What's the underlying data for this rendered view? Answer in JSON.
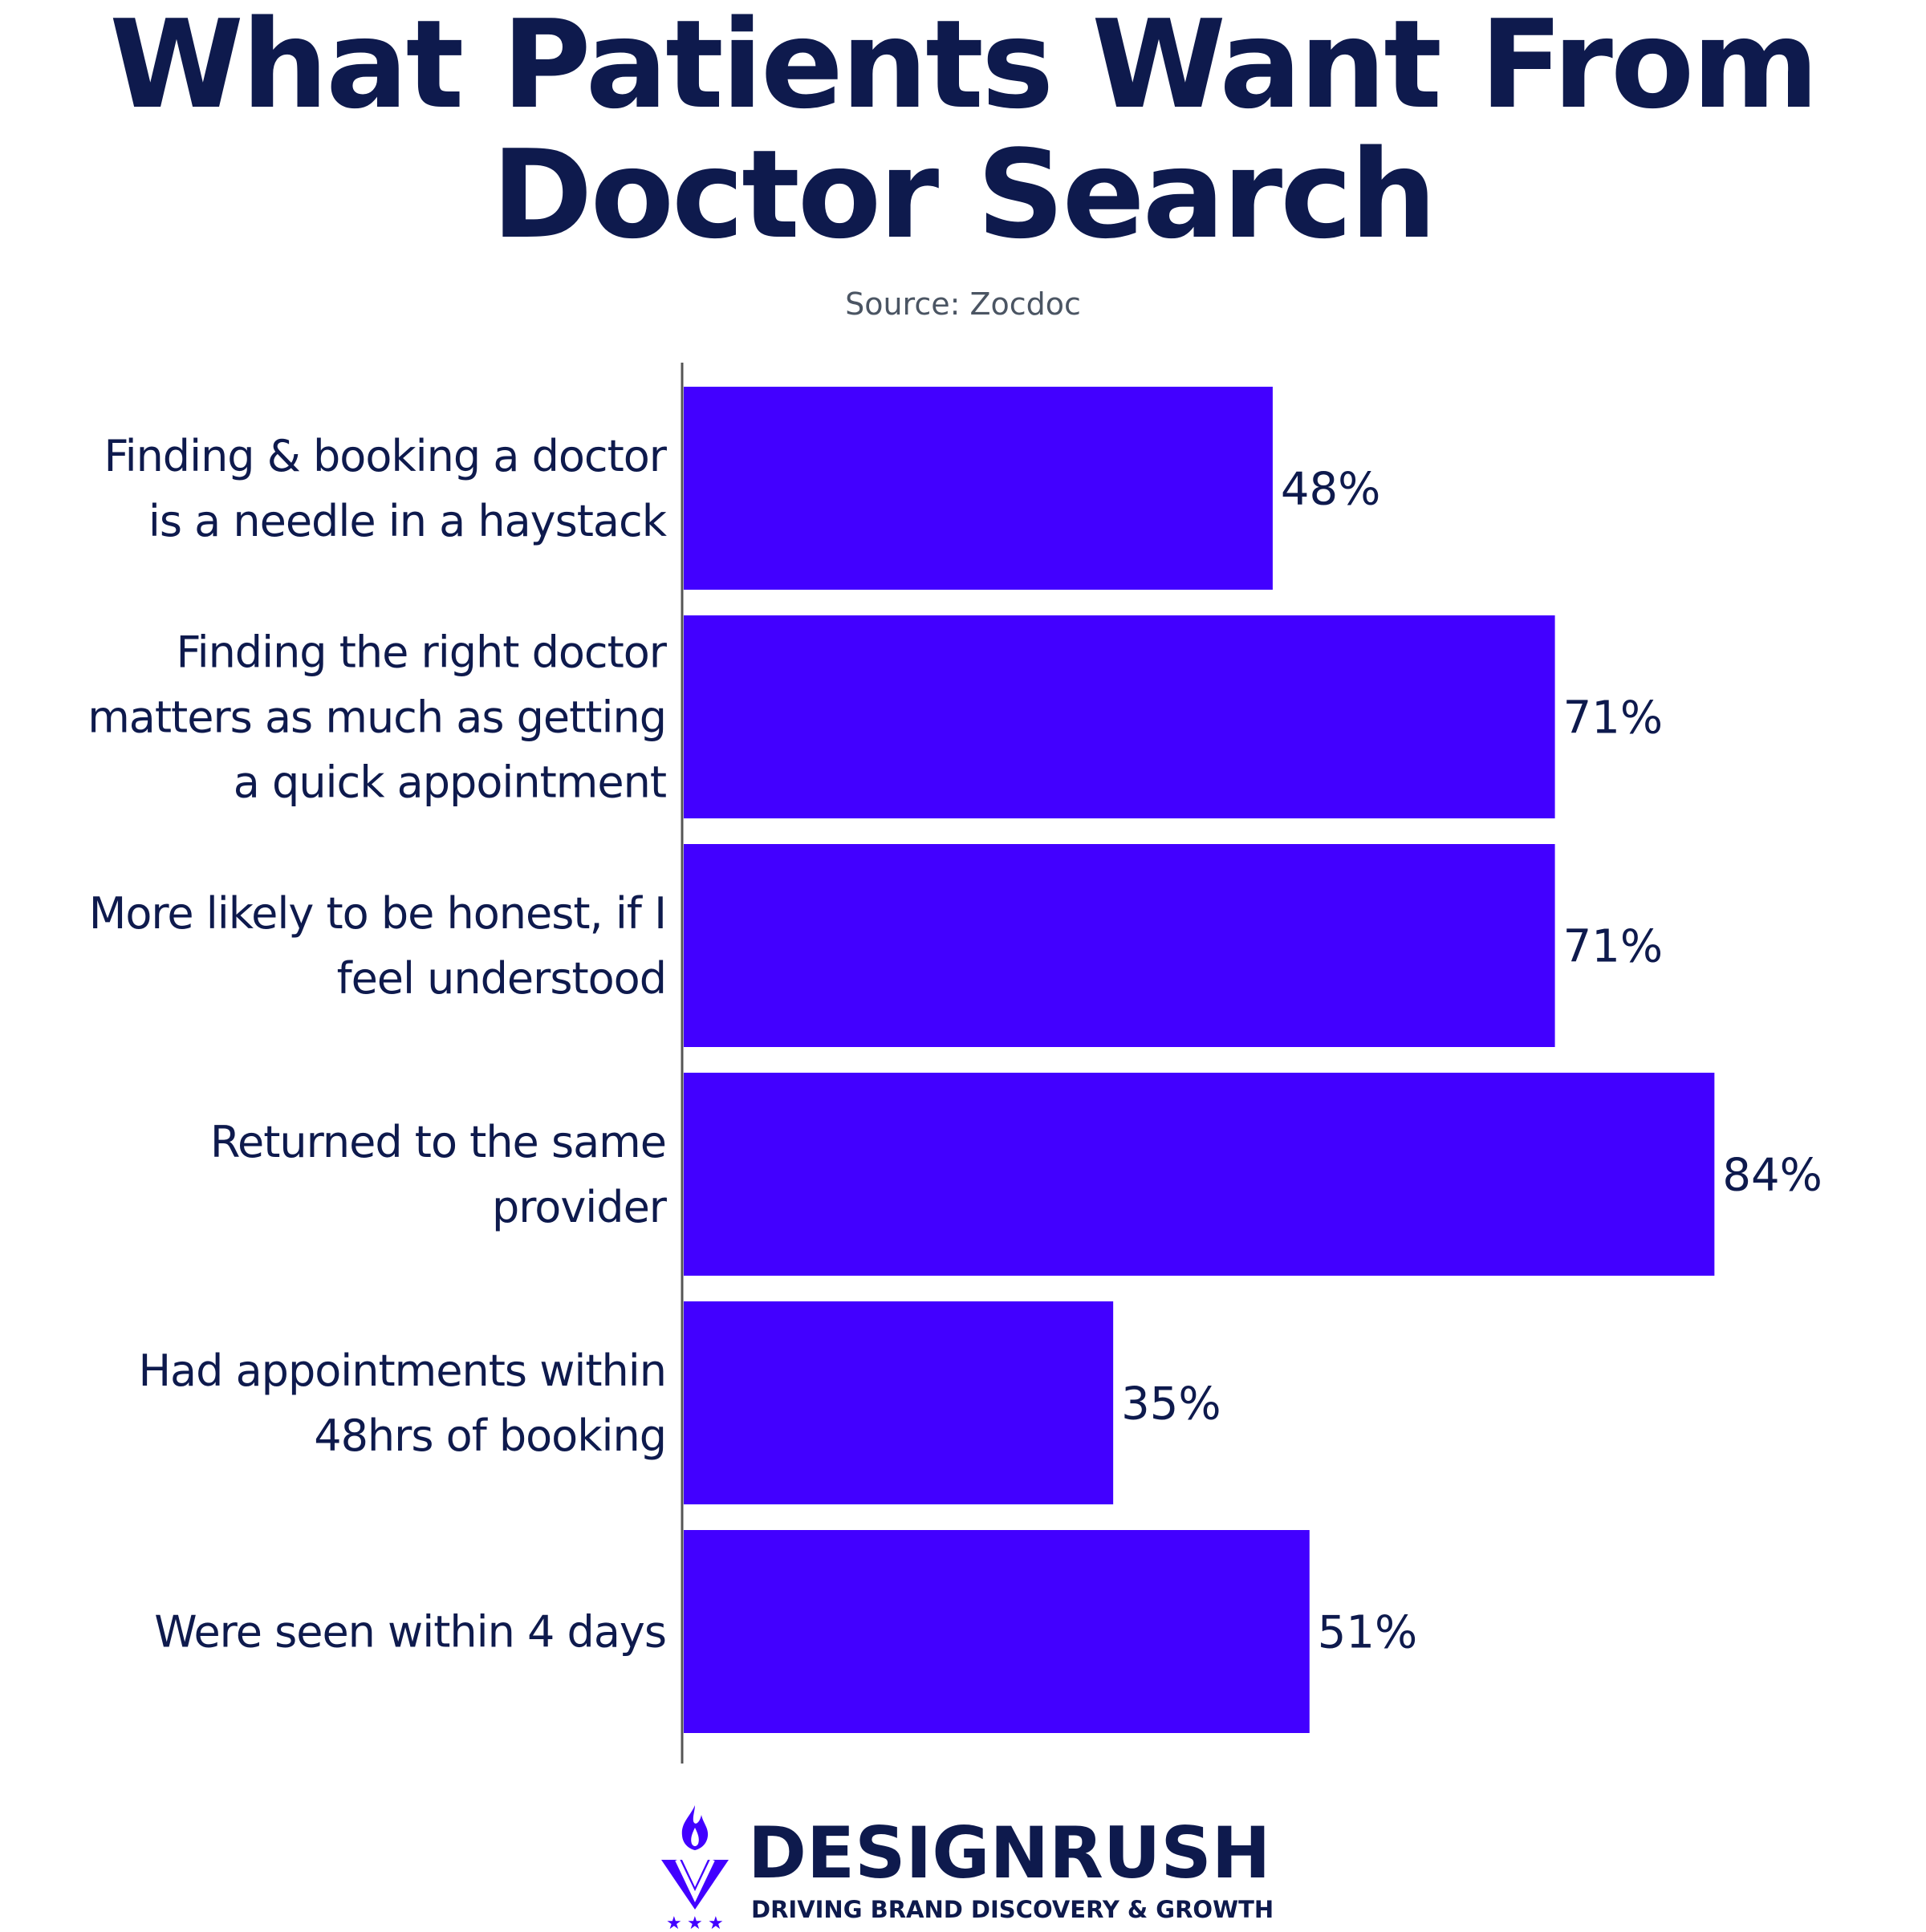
{
  "chart_data": {
    "type": "bar",
    "orientation": "horizontal",
    "title_lines": [
      "What Patients Want From",
      "Doctor Search"
    ],
    "subtitle": "Source: Zocdoc",
    "categories": [
      [
        "Finding & booking a doctor",
        "is a needle in a haystack"
      ],
      [
        "Finding the right doctor",
        "matters as much as getting",
        "a quick appointment"
      ],
      [
        "More likely to be honest, if I",
        "feel understood"
      ],
      [
        "Returned to the same",
        "provider"
      ],
      [
        "Had appointments within",
        "48hrs of booking"
      ],
      [
        "Were seen within 4 days"
      ]
    ],
    "values": [
      48,
      71,
      71,
      84,
      35,
      51
    ],
    "value_labels": [
      "48%",
      "71%",
      "71%",
      "84%",
      "35%",
      "51%"
    ],
    "unit": "%",
    "xlim": [
      0,
      100
    ],
    "grid": false,
    "bar_color": "#4200ff",
    "axis_color": "#555555"
  },
  "branding": {
    "name": "DESIGNRUSH",
    "tagline": "DRIVING BRAND DISCOVERY & GROWTH",
    "icon": "flame-v-logo-icon",
    "color": "#4200ff"
  },
  "text_color": "#0e1a4d"
}
